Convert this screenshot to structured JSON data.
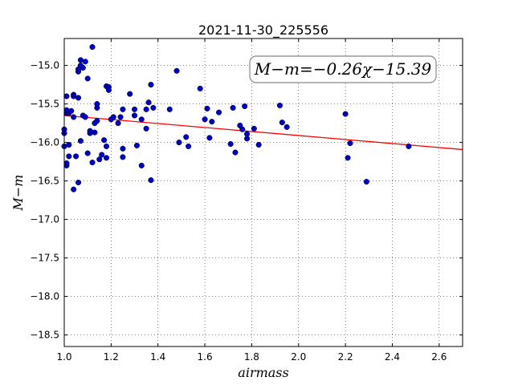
{
  "chart_data": {
    "type": "scatter",
    "title": "2021-11-30_225556",
    "xlabel": "airmass",
    "ylabel": "M−m",
    "xlim": [
      1.0,
      2.7
    ],
    "ylim": [
      -18.65,
      -14.65
    ],
    "y_inverted": true,
    "grid": true,
    "x_ticks": [
      "1.0",
      "1.2",
      "1.4",
      "1.6",
      "1.8",
      "2.0",
      "2.2",
      "2.4",
      "2.6"
    ],
    "y_ticks": [
      "−15.0",
      "−15.5",
      "−16.0",
      "−16.5",
      "−17.0",
      "−17.5",
      "−18.0",
      "−18.5"
    ],
    "annotation": "M−m=−0.26χ−15.39",
    "fit": {
      "slope": -0.26,
      "intercept": -15.39,
      "color": "#ff0000"
    },
    "point_color": "#0000bf",
    "points": [
      [
        1.0,
        -15.83
      ],
      [
        1.0,
        -15.88
      ],
      [
        1.0,
        -16.05
      ],
      [
        1.01,
        -16.3
      ],
      [
        1.01,
        -16.27
      ],
      [
        1.01,
        -15.62
      ],
      [
        1.01,
        -15.58
      ],
      [
        1.01,
        -15.4
      ],
      [
        1.02,
        -16.18
      ],
      [
        1.02,
        -16.03
      ],
      [
        1.02,
        -15.62
      ],
      [
        1.03,
        -15.59
      ],
      [
        1.04,
        -15.38
      ],
      [
        1.04,
        -15.4
      ],
      [
        1.04,
        -16.61
      ],
      [
        1.04,
        -15.67
      ],
      [
        1.05,
        -16.18
      ],
      [
        1.06,
        -15.42
      ],
      [
        1.06,
        -16.52
      ],
      [
        1.06,
        -15.08
      ],
      [
        1.06,
        -15.05
      ],
      [
        1.07,
        -15.98
      ],
      [
        1.07,
        -14.93
      ],
      [
        1.07,
        -15.0
      ],
      [
        1.08,
        -15.65
      ],
      [
        1.08,
        -15.03
      ],
      [
        1.09,
        -14.95
      ],
      [
        1.09,
        -15.67
      ],
      [
        1.1,
        -16.14
      ],
      [
        1.1,
        -15.17
      ],
      [
        1.11,
        -15.88
      ],
      [
        1.11,
        -15.85
      ],
      [
        1.12,
        -16.26
      ],
      [
        1.12,
        -14.76
      ],
      [
        1.13,
        -15.87
      ],
      [
        1.13,
        -15.75
      ],
      [
        1.14,
        -15.72
      ],
      [
        1.14,
        -15.5
      ],
      [
        1.14,
        -15.55
      ],
      [
        1.15,
        -16.22
      ],
      [
        1.16,
        -16.16
      ],
      [
        1.17,
        -15.97
      ],
      [
        1.18,
        -16.2
      ],
      [
        1.18,
        -16.05
      ],
      [
        1.18,
        -15.27
      ],
      [
        1.19,
        -15.28
      ],
      [
        1.19,
        -15.32
      ],
      [
        1.2,
        -15.7
      ],
      [
        1.21,
        -15.67
      ],
      [
        1.23,
        -15.75
      ],
      [
        1.24,
        -15.67
      ],
      [
        1.25,
        -16.08
      ],
      [
        1.25,
        -16.19
      ],
      [
        1.25,
        -15.57
      ],
      [
        1.28,
        -15.37
      ],
      [
        1.3,
        -15.57
      ],
      [
        1.3,
        -15.65
      ],
      [
        1.31,
        -16.04
      ],
      [
        1.33,
        -15.7
      ],
      [
        1.33,
        -16.3
      ],
      [
        1.35,
        -15.57
      ],
      [
        1.35,
        -15.82
      ],
      [
        1.36,
        -15.48
      ],
      [
        1.37,
        -16.49
      ],
      [
        1.37,
        -15.25
      ],
      [
        1.38,
        -15.55
      ],
      [
        1.45,
        -15.57
      ],
      [
        1.48,
        -15.07
      ],
      [
        1.49,
        -16.0
      ],
      [
        1.52,
        -15.93
      ],
      [
        1.53,
        -16.05
      ],
      [
        1.58,
        -15.3
      ],
      [
        1.6,
        -15.7
      ],
      [
        1.61,
        -15.56
      ],
      [
        1.62,
        -15.94
      ],
      [
        1.63,
        -15.73
      ],
      [
        1.66,
        -15.61
      ],
      [
        1.71,
        -16.02
      ],
      [
        1.72,
        -15.55
      ],
      [
        1.73,
        -16.13
      ],
      [
        1.75,
        -15.78
      ],
      [
        1.76,
        -15.83
      ],
      [
        1.77,
        -15.53
      ],
      [
        1.78,
        -15.89
      ],
      [
        1.78,
        -15.95
      ],
      [
        1.81,
        -15.82
      ],
      [
        1.83,
        -16.03
      ],
      [
        1.92,
        -15.52
      ],
      [
        1.93,
        -15.74
      ],
      [
        1.95,
        -15.8
      ],
      [
        2.2,
        -15.63
      ],
      [
        2.21,
        -16.2
      ],
      [
        2.22,
        -16.01
      ],
      [
        2.29,
        -16.51
      ],
      [
        2.47,
        -16.05
      ]
    ]
  }
}
